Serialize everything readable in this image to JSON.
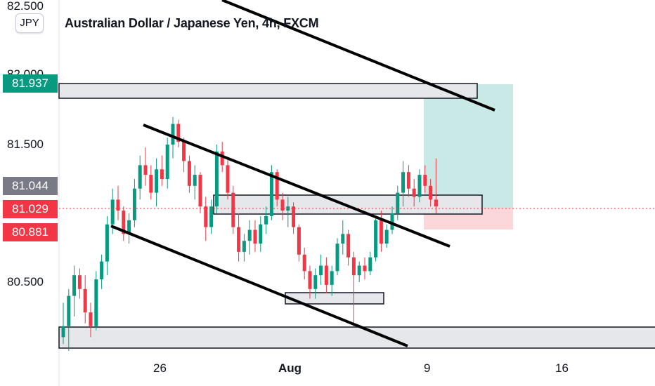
{
  "header": {
    "symbol_button": "JPY",
    "title": "Australian Dollar / Japanese Yen, 4h, FXCM"
  },
  "price_badges": [
    {
      "label": "81.937",
      "value": 81.937,
      "color": "#089981"
    },
    {
      "label": "81.044",
      "value": 81.044,
      "color": "#787b86"
    },
    {
      "label": "81.029",
      "value": 81.029,
      "color": "#f23645"
    },
    {
      "label": "80.881",
      "value": 80.881,
      "color": "#f23645"
    }
  ],
  "chart_data": {
    "type": "candlestick",
    "title": "Australian Dollar / Japanese Yen, 4h, FXCM",
    "y_ticks": [
      "82.500",
      "82.000",
      "81.500",
      "80.500"
    ],
    "y_tick_values": [
      82.5,
      82.0,
      81.5,
      80.5
    ],
    "x_ticks": [
      "26",
      "Aug",
      "9",
      "16"
    ],
    "ylim": [
      80.0,
      82.5
    ],
    "current_price": 81.029,
    "colors": {
      "up": "#089981",
      "down": "#f23645"
    },
    "candles": [
      [
        80.1,
        80.35,
        80.05,
        80.18
      ],
      [
        80.18,
        80.45,
        80.0,
        80.4
      ],
      [
        80.4,
        80.62,
        80.25,
        80.55
      ],
      [
        80.55,
        80.6,
        80.38,
        80.45
      ],
      [
        80.45,
        80.55,
        80.2,
        80.28
      ],
      [
        80.28,
        80.35,
        80.1,
        80.18
      ],
      [
        80.18,
        80.58,
        80.15,
        80.52
      ],
      [
        80.52,
        80.7,
        80.45,
        80.65
      ],
      [
        80.65,
        80.98,
        80.55,
        80.92
      ],
      [
        80.92,
        81.18,
        80.85,
        81.1
      ],
      [
        81.1,
        81.2,
        80.95,
        81.02
      ],
      [
        81.02,
        81.05,
        80.8,
        80.85
      ],
      [
        80.85,
        81.0,
        80.78,
        80.95
      ],
      [
        80.95,
        81.25,
        80.9,
        81.18
      ],
      [
        81.18,
        81.42,
        81.1,
        81.35
      ],
      [
        81.35,
        81.48,
        81.2,
        81.28
      ],
      [
        81.28,
        81.35,
        81.1,
        81.15
      ],
      [
        81.15,
        81.4,
        81.05,
        81.32
      ],
      [
        81.32,
        81.42,
        81.2,
        81.25
      ],
      [
        81.25,
        81.55,
        81.18,
        81.5
      ],
      [
        81.5,
        81.7,
        81.4,
        81.65
      ],
      [
        81.65,
        81.68,
        81.48,
        81.52
      ],
      [
        81.52,
        81.55,
        81.3,
        81.38
      ],
      [
        81.38,
        81.42,
        81.15,
        81.2
      ],
      [
        81.2,
        81.35,
        81.1,
        81.28
      ],
      [
        81.28,
        81.3,
        81.0,
        81.05
      ],
      [
        81.05,
        81.12,
        80.8,
        80.9
      ],
      [
        80.9,
        81.1,
        80.85,
        81.05
      ],
      [
        81.05,
        81.5,
        81.0,
        81.45
      ],
      [
        81.45,
        81.52,
        81.3,
        81.35
      ],
      [
        81.35,
        81.4,
        81.1,
        81.15
      ],
      [
        81.15,
        81.2,
        80.85,
        80.9
      ],
      [
        80.9,
        81.0,
        80.65,
        80.72
      ],
      [
        80.72,
        80.85,
        80.65,
        80.8
      ],
      [
        80.8,
        80.95,
        80.7,
        80.88
      ],
      [
        80.88,
        80.95,
        80.72,
        80.78
      ],
      [
        80.78,
        80.98,
        80.72,
        80.92
      ],
      [
        80.92,
        81.05,
        80.85,
        80.98
      ],
      [
        80.98,
        81.35,
        80.95,
        81.3
      ],
      [
        81.3,
        81.32,
        81.05,
        81.1
      ],
      [
        81.1,
        81.15,
        80.95,
        81.02
      ],
      [
        81.02,
        81.12,
        80.9,
        81.05
      ],
      [
        81.05,
        81.08,
        80.85,
        80.9
      ],
      [
        80.9,
        80.92,
        80.65,
        80.7
      ],
      [
        80.7,
        80.75,
        80.52,
        80.58
      ],
      [
        80.58,
        80.62,
        80.38,
        80.45
      ],
      [
        80.45,
        80.6,
        80.38,
        80.55
      ],
      [
        80.55,
        80.7,
        80.48,
        80.62
      ],
      [
        80.62,
        80.68,
        80.42,
        80.48
      ],
      [
        80.48,
        80.62,
        80.4,
        80.58
      ],
      [
        80.58,
        80.82,
        80.55,
        80.78
      ],
      [
        80.78,
        80.95,
        80.7,
        80.85
      ],
      [
        80.85,
        80.88,
        80.62,
        80.68
      ],
      [
        80.68,
        80.72,
        80.18,
        80.55
      ],
      [
        80.55,
        80.65,
        80.5,
        80.62
      ],
      [
        80.62,
        80.68,
        80.52,
        80.58
      ],
      [
        80.58,
        80.72,
        80.55,
        80.68
      ],
      [
        80.68,
        80.98,
        80.65,
        80.95
      ],
      [
        80.95,
        81.02,
        80.72,
        80.78
      ],
      [
        80.78,
        80.92,
        80.75,
        80.88
      ],
      [
        80.88,
        81.05,
        80.85,
        81.0
      ],
      [
        81.0,
        81.2,
        80.95,
        81.15
      ],
      [
        81.15,
        81.38,
        81.05,
        81.3
      ],
      [
        81.3,
        81.35,
        81.12,
        81.18
      ],
      [
        81.18,
        81.25,
        81.05,
        81.12
      ],
      [
        81.12,
        81.32,
        81.08,
        81.28
      ],
      [
        81.28,
        81.35,
        81.15,
        81.2
      ],
      [
        81.2,
        81.25,
        81.05,
        81.1
      ],
      [
        81.1,
        81.4,
        81.0,
        81.05
      ]
    ]
  }
}
